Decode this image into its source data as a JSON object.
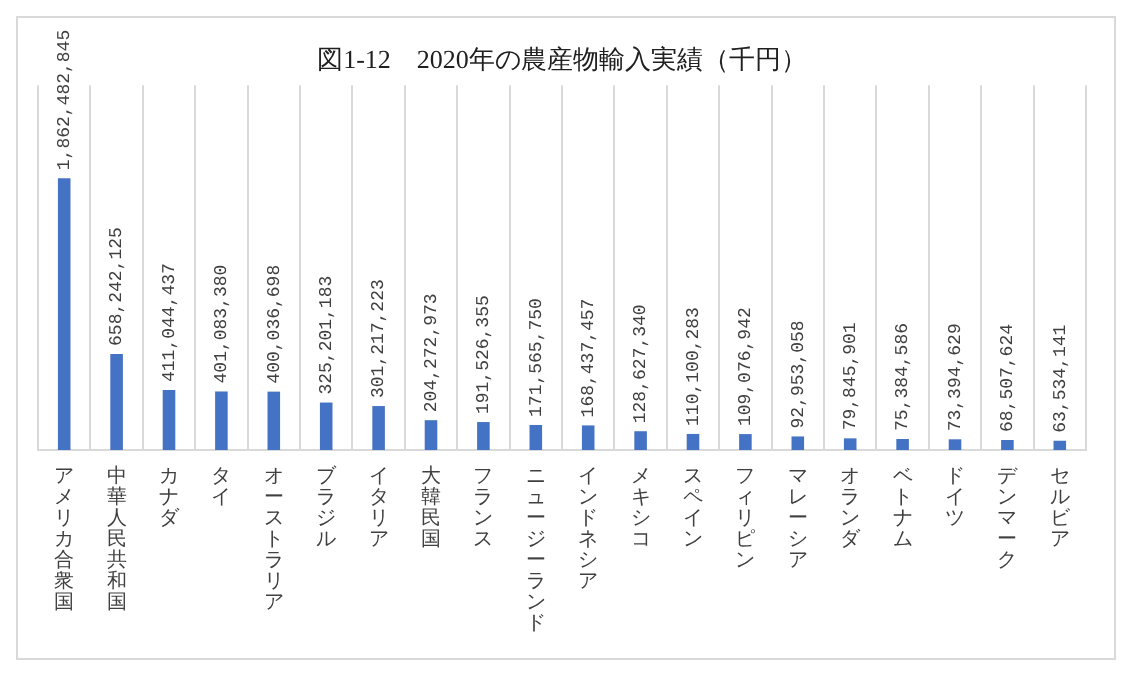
{
  "chart_data": {
    "type": "bar",
    "title": "図1-12　2020年の農産物輸入実績（千円）",
    "categories": [
      "アメリカ合衆国",
      "中華人民共和国",
      "カナダ",
      "タイ",
      "オーストラリア",
      "ブラジル",
      "イタリア",
      "大韓民国",
      "フランス",
      "ニュージーランド",
      "インドネシア",
      "メキシコ",
      "スペイン",
      "フィリピン",
      "マレーシア",
      "オランダ",
      "ベトナム",
      "ドイツ",
      "デンマーク",
      "セルビア"
    ],
    "values": [
      1862482845,
      658242125,
      411044437,
      401083380,
      400036698,
      325201183,
      301217223,
      204272973,
      191526355,
      171565750,
      168437457,
      128627340,
      110100283,
      109076942,
      92953058,
      79845901,
      75384586,
      73394629,
      68507624,
      63534141
    ],
    "value_labels": [
      "1,862,482,845",
      "658,242,125",
      "411,044,437",
      "401,083,380",
      "400,036,698",
      "325,201,183",
      "301,217,223",
      "204,272,973",
      "191,526,355",
      "171,565,750",
      "168,437,457",
      "128,627,340",
      "110,100,283",
      "109,076,942",
      "92,953,058",
      "79,845,901",
      "75,384,586",
      "73,394,629",
      "68,507,624",
      "63,534,141"
    ],
    "color": "#4472c4",
    "grid": "x"
  }
}
